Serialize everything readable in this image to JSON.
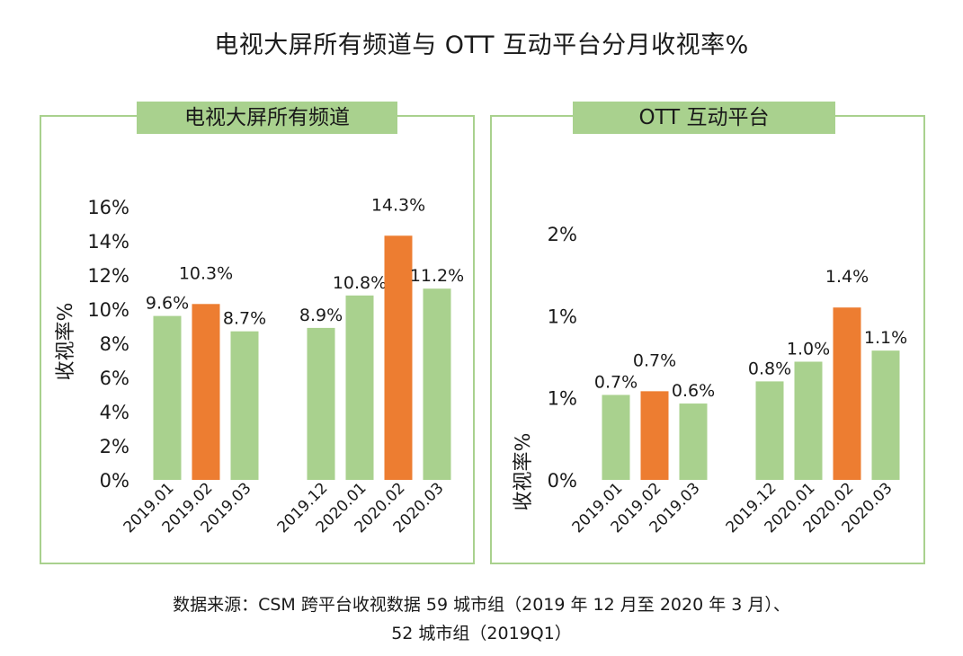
{
  "title": "电视大屏所有频道与 OTT 互动平台分月收视率%",
  "source_line1": "数据来源：CSM 跨平台收视数据 59 城市组（2019 年 12 月至 2020 年 3 月）、",
  "source_line2": "52 城市组（2019Q1）",
  "colors": {
    "normal": "#a9d18e",
    "highlight": "#ed7d31",
    "border": "#a9d18e"
  },
  "chart_data": [
    {
      "type": "bar",
      "title": "电视大屏所有频道",
      "ylabel": "收视率%",
      "ylim": [
        0,
        16
      ],
      "yticks": [
        "0%",
        "2%",
        "4%",
        "6%",
        "8%",
        "10%",
        "12%",
        "14%",
        "16%"
      ],
      "groups": [
        [
          "2019.01",
          "2019.02",
          "2019.03"
        ],
        [
          "2019.12",
          "2020.01",
          "2020.02",
          "2020.03"
        ]
      ],
      "categories": [
        "2019.01",
        "2019.02",
        "2019.03",
        "2019.12",
        "2020.01",
        "2020.02",
        "2020.03"
      ],
      "values": [
        9.6,
        10.3,
        8.7,
        8.9,
        10.8,
        14.3,
        11.2
      ],
      "data_labels": [
        "9.6%",
        "10.3%",
        "8.7%",
        "8.9%",
        "10.8%",
        "14.3%",
        "11.2%"
      ],
      "highlight_index": [
        1,
        5
      ],
      "grid": false,
      "legend": "none"
    },
    {
      "type": "bar",
      "title": "OTT 互动平台",
      "ylabel": "收视率%",
      "ylim": [
        0,
        2
      ],
      "yticks": [
        "0%",
        "1%",
        "1%",
        "2%"
      ],
      "groups": [
        [
          "2019.01",
          "2019.02",
          "2019.03"
        ],
        [
          "2019.12",
          "2020.01",
          "2020.02",
          "2020.03"
        ]
      ],
      "categories": [
        "2019.01",
        "2019.02",
        "2019.03",
        "2019.12",
        "2020.01",
        "2020.02",
        "2020.03"
      ],
      "values": [
        0.69,
        0.72,
        0.62,
        0.8,
        0.96,
        1.4,
        1.05
      ],
      "data_labels": [
        "0.7%",
        "0.7%",
        "0.6%",
        "0.8%",
        "1.0%",
        "1.4%",
        "1.1%"
      ],
      "highlight_index": [
        1,
        5
      ],
      "grid": false,
      "legend": "none"
    }
  ]
}
